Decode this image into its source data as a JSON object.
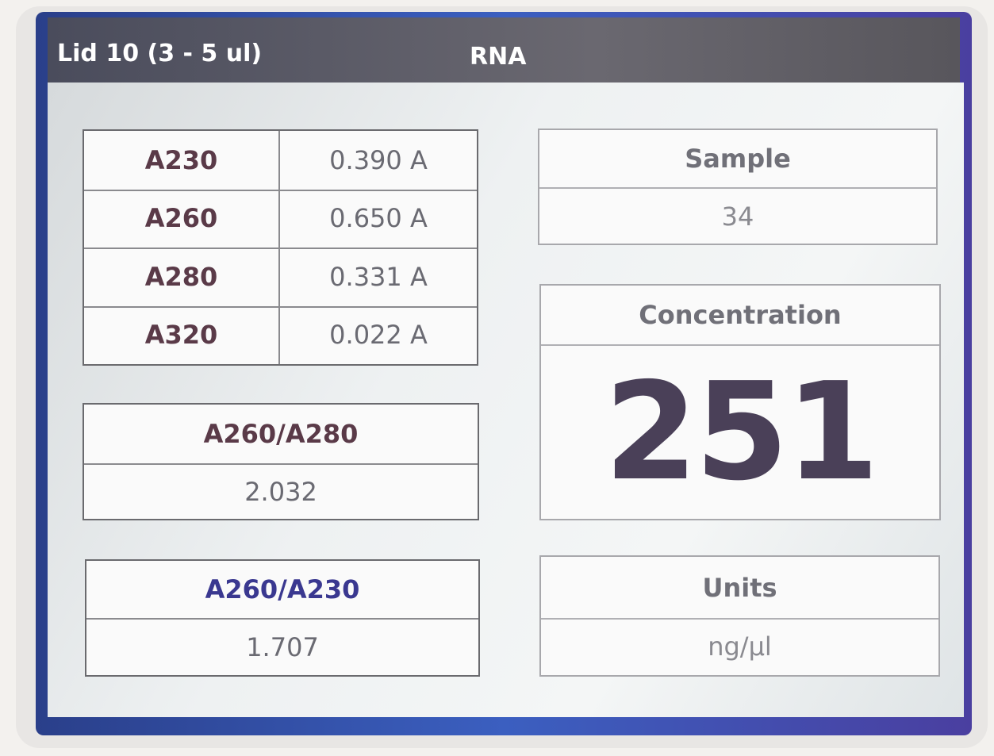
{
  "header": {
    "lid": "Lid 10 (3 - 5 ul)",
    "title": "RNA"
  },
  "absorbance": {
    "rows": [
      [
        "A230",
        "0.390 A"
      ],
      [
        "A260",
        "0.650 A"
      ],
      [
        "A280",
        "0.331 A"
      ],
      [
        "A320",
        "0.022 A"
      ]
    ]
  },
  "ratios": [
    {
      "label": "A260/A280",
      "value": "2.032"
    },
    {
      "label": "A260/A230",
      "value": "1.707"
    }
  ],
  "sample": {
    "label": "Sample",
    "value": "34"
  },
  "concentration": {
    "label": "Concentration",
    "value": "251"
  },
  "units": {
    "label": "Units",
    "value": "ng/µl"
  }
}
